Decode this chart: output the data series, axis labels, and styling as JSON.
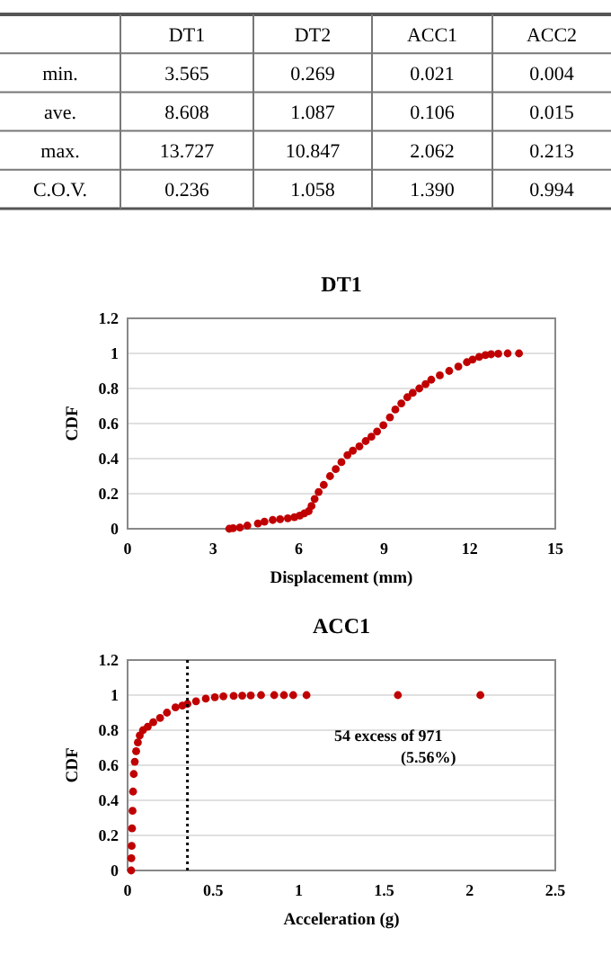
{
  "chart_data": [
    {
      "type": "other",
      "categories": [
        null,
        "DT1",
        "DT2",
        "ACC1",
        "ACC2"
      ],
      "y_categories": [
        "min.",
        "ave.",
        "max.",
        "C.O.V."
      ],
      "cell_labels": [
        [
          "3.565",
          "0.269",
          "0.021",
          "0.004"
        ],
        [
          "8.608",
          "1.087",
          "0.106",
          "0.015"
        ],
        [
          "13.727",
          "10.847",
          "2.062",
          "0.213"
        ],
        [
          "0.236",
          "1.058",
          "1.390",
          "0.994"
        ]
      ]
    },
    {
      "type": "scatter",
      "title": "DT1",
      "xlabel": "Displacement (mm)",
      "ylabel": "CDF",
      "xlim": [
        0,
        15
      ],
      "xticks": [
        0,
        3,
        6,
        9,
        12,
        15
      ],
      "ylim": [
        0,
        1.2
      ],
      "yticks": [
        0,
        0.2,
        0.4,
        0.6,
        0.8,
        1,
        1.2
      ],
      "grid": "y",
      "marker": "circle",
      "series": [
        {
          "color": "#c00000",
          "x": [
            3.565,
            3.7,
            3.94,
            4.2,
            4.57,
            4.8,
            5.09,
            5.35,
            5.62,
            5.85,
            6.04,
            6.2,
            6.35,
            6.45,
            6.56,
            6.7,
            6.88,
            7.1,
            7.3,
            7.5,
            7.71,
            7.9,
            8.13,
            8.35,
            8.55,
            8.75,
            8.97,
            9.2,
            9.39,
            9.6,
            9.81,
            10.0,
            10.23,
            10.45,
            10.65,
            10.95,
            11.28,
            11.6,
            11.9,
            12.1,
            12.33,
            12.55,
            12.75,
            13.0,
            13.33,
            13.727
          ],
          "values": [
            0,
            0.003,
            0.007,
            0.018,
            0.03,
            0.04,
            0.05,
            0.055,
            0.06,
            0.066,
            0.075,
            0.088,
            0.1,
            0.13,
            0.17,
            0.21,
            0.25,
            0.3,
            0.34,
            0.38,
            0.42,
            0.445,
            0.47,
            0.5,
            0.525,
            0.555,
            0.59,
            0.635,
            0.68,
            0.715,
            0.75,
            0.775,
            0.8,
            0.825,
            0.85,
            0.875,
            0.9,
            0.925,
            0.95,
            0.965,
            0.98,
            0.99,
            0.995,
            0.998,
            1,
            1
          ]
        }
      ]
    },
    {
      "type": "scatter",
      "title": "ACC1",
      "xlabel": "Acceleration (g)",
      "ylabel": "CDF",
      "xlim": [
        0,
        2.5
      ],
      "xticks": [
        0,
        0.5,
        1,
        1.5,
        2,
        2.5
      ],
      "ylim": [
        0,
        1.2
      ],
      "yticks": [
        0,
        0.2,
        0.4,
        0.6,
        0.8,
        1,
        1.2
      ],
      "grid": "y",
      "marker": "circle",
      "ref_lines": [
        {
          "axis": "x",
          "value": 0.35,
          "line_style": "dotted",
          "color": "#000000"
        }
      ],
      "annotations": [
        "54 excess of 971\n(5.56%)"
      ],
      "series": [
        {
          "color": "#c00000",
          "x": [
            0.021,
            0.022,
            0.024,
            0.026,
            0.029,
            0.032,
            0.036,
            0.042,
            0.05,
            0.06,
            0.071,
            0.09,
            0.118,
            0.15,
            0.19,
            0.23,
            0.28,
            0.32,
            0.35,
            0.4,
            0.457,
            0.51,
            0.56,
            0.62,
            0.67,
            0.72,
            0.78,
            0.857,
            0.914,
            0.968,
            1.046,
            1.58,
            2.062
          ],
          "values": [
            0,
            0.07,
            0.14,
            0.24,
            0.34,
            0.45,
            0.55,
            0.62,
            0.68,
            0.73,
            0.77,
            0.8,
            0.82,
            0.845,
            0.87,
            0.9,
            0.93,
            0.94,
            0.95,
            0.965,
            0.98,
            0.988,
            0.993,
            0.995,
            0.997,
            0.998,
            1,
            1,
            1,
            1,
            1,
            1,
            1
          ]
        }
      ]
    }
  ]
}
